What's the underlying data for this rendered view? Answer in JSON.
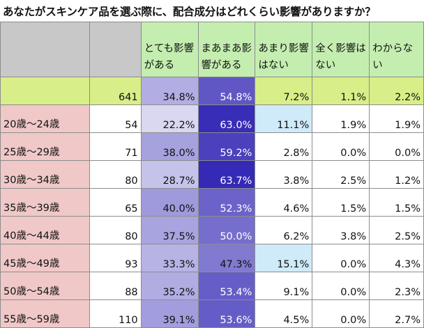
{
  "title": "あなたがスキンケア品を選ぶ際に、配合成分はどれくらい影響がありますか？",
  "colors": {
    "header_gray": "#c8c8c8",
    "header_green": "#c4eeb0",
    "total_row": "#d8ee88",
    "age_label": "#f0c8c8",
    "scale_low": "#ffffff",
    "scale_high": "#3328b4",
    "highlight_blue": "#cfeaf8"
  },
  "chart_data": {
    "type": "table",
    "title": "あなたがスキンケア品を選ぶ際に、配合成分はどれくらい影響がありますか？",
    "columns": [
      "",
      "",
      "とても影響がある",
      "まあまあ影響がある",
      "あまり影響はない",
      "全く影響はない",
      "わからない"
    ],
    "total": {
      "label": "",
      "n": "641",
      "values": [
        "34.8%",
        "54.8%",
        "7.2%",
        "1.1%",
        "2.2%"
      ]
    },
    "rows": [
      {
        "label": "20歳～24歳",
        "n": "54",
        "values": [
          "22.2%",
          "63.0%",
          "11.1%",
          "1.9%",
          "1.9%"
        ]
      },
      {
        "label": "25歳～29歳",
        "n": "71",
        "values": [
          "38.0%",
          "59.2%",
          "2.8%",
          "0.0%",
          "0.0%"
        ]
      },
      {
        "label": "30歳～34歳",
        "n": "80",
        "values": [
          "28.7%",
          "63.7%",
          "3.8%",
          "2.5%",
          "1.2%"
        ]
      },
      {
        "label": "35歳～39歳",
        "n": "65",
        "values": [
          "40.0%",
          "52.3%",
          "4.6%",
          "1.5%",
          "1.5%"
        ]
      },
      {
        "label": "40歳～44歳",
        "n": "80",
        "values": [
          "37.5%",
          "50.0%",
          "6.2%",
          "3.8%",
          "2.5%"
        ]
      },
      {
        "label": "45歳～49歳",
        "n": "93",
        "values": [
          "33.3%",
          "47.3%",
          "15.1%",
          "0.0%",
          "4.3%"
        ]
      },
      {
        "label": "50歳～54歳",
        "n": "88",
        "values": [
          "35.2%",
          "53.4%",
          "9.1%",
          "0.0%",
          "2.3%"
        ]
      },
      {
        "label": "55歳～59歳",
        "n": "110",
        "values": [
          "39.1%",
          "53.6%",
          "4.5%",
          "0.0%",
          "2.7%"
        ]
      }
    ]
  }
}
